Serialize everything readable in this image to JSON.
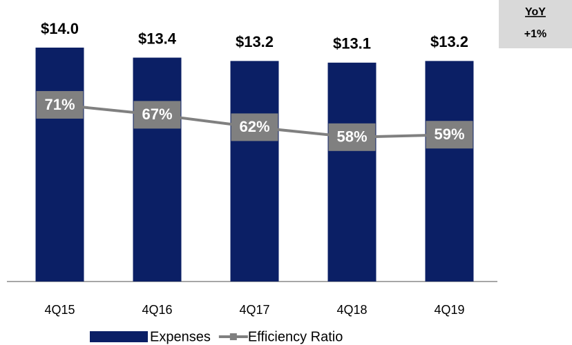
{
  "chart_data": {
    "type": "bar",
    "categories": [
      "4Q15",
      "4Q16",
      "4Q17",
      "4Q18",
      "4Q19"
    ],
    "series": [
      {
        "name": "Expenses",
        "color": "#0b1f65",
        "values": [
          14.0,
          13.4,
          13.2,
          13.1,
          13.2
        ],
        "value_labels": [
          "$14.0",
          "$13.4",
          "$13.2",
          "$13.1",
          "$13.2"
        ]
      },
      {
        "name": "Efficiency Ratio",
        "type": "line",
        "axis": "y2",
        "color": "#808080",
        "values": [
          71,
          67,
          62,
          58,
          59
        ],
        "value_labels": [
          "71%",
          "67%",
          "62%",
          "58%",
          "59%"
        ]
      }
    ],
    "ylim": [
      0,
      14
    ],
    "y2lim": [
      0,
      94
    ],
    "annotation": {
      "title": "YoY",
      "value": "+1%"
    }
  }
}
